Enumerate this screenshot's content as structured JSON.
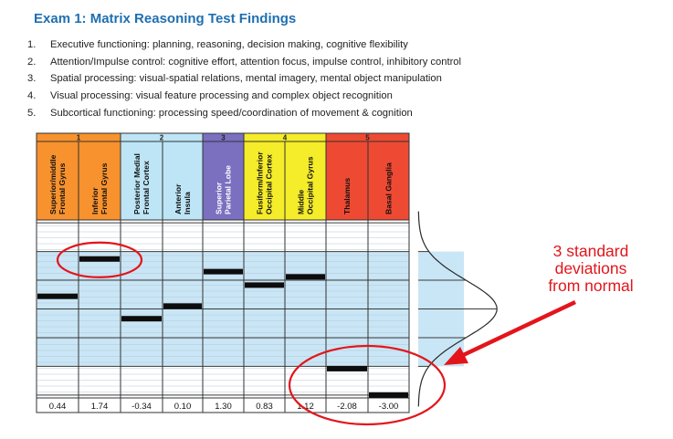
{
  "title": "Exam 1: Matrix Reasoning Test Findings",
  "findings": [
    {
      "num": "1.",
      "text": "Executive functioning: planning, reasoning, decision making, cognitive flexibility"
    },
    {
      "num": "2.",
      "text": "Attention/Impulse control: cognitive effort, attention focus, impulse control, inhibitory control"
    },
    {
      "num": "3.",
      "text": "Spatial processing: visual-spatial relations, mental imagery, mental object manipulation"
    },
    {
      "num": "4.",
      "text": "Visual processing: visual feature processing and complex object recognition"
    },
    {
      "num": "5.",
      "text": "Subcortical functioning: processing speed/coordination of movement & cognition"
    }
  ],
  "annotation": {
    "lines": [
      "3 standard",
      "deviations",
      "from normal"
    ],
    "color": "#e3151b"
  },
  "colors": {
    "highlight": "#e3151b",
    "band_fill": "#c9e6f6"
  },
  "chart_data": {
    "type": "bar",
    "groups": [
      {
        "label": "1",
        "color": "#f7922e"
      },
      {
        "label": "2",
        "color": "#bde5f6"
      },
      {
        "label": "3",
        "color": "#7b6fc0"
      },
      {
        "label": "4",
        "color": "#f5ec2a"
      },
      {
        "label": "5",
        "color": "#ee4a33"
      }
    ],
    "categories": [
      "Superior/middle Frontal Gyrus",
      "Inferior Frontal Gyrus",
      "Posterior Medial Frontal Cortex",
      "Anterior Insula",
      "Superior Parietal Lobe",
      "Fusiform/Inferior Occipital Cortex",
      "Middle Occipital Gyrus",
      "Thalamus",
      "Basal Ganglia"
    ],
    "category_group": [
      0,
      0,
      1,
      1,
      2,
      3,
      3,
      4,
      4
    ],
    "values": [
      0.44,
      1.74,
      -0.34,
      0.1,
      1.3,
      0.83,
      1.12,
      -2.08,
      -3.0
    ],
    "value_labels": [
      "0.44",
      "1.74",
      "-0.34",
      "0.10",
      "1.30",
      "0.83",
      "1.12",
      "-2.08",
      "-3.00"
    ],
    "ylim": [
      -3.1,
      3.1
    ]
  }
}
